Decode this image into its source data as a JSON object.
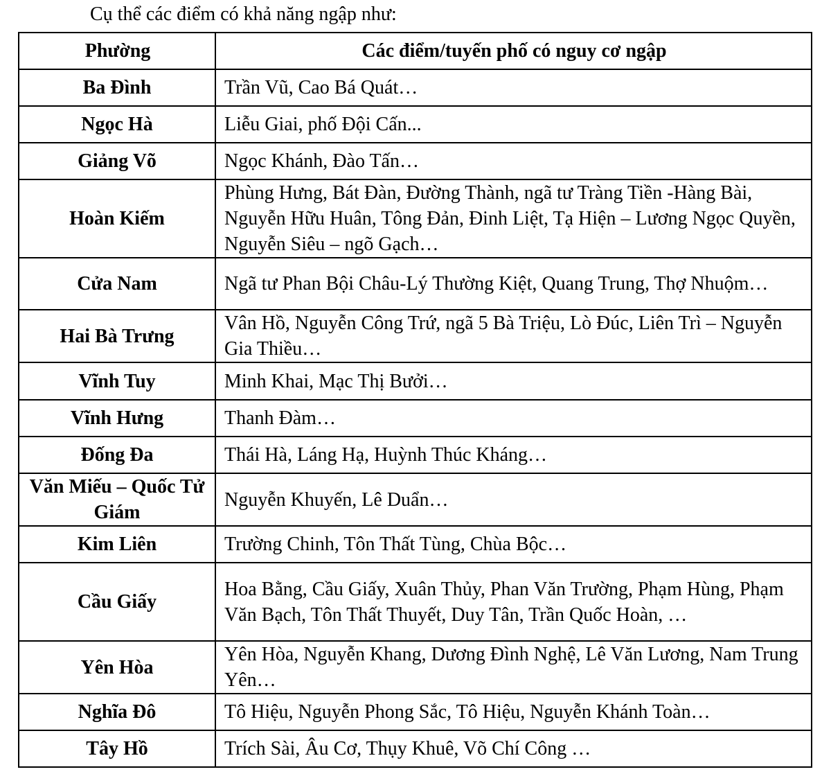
{
  "intro": "Cụ thể các điểm có khả năng ngập như:",
  "table": {
    "headers": [
      "Phường",
      "Các điểm/tuyến phố có nguy cơ ngập"
    ],
    "rows": [
      {
        "ward": "Ba Đình",
        "streets": "Trần Vũ, Cao Bá Quát…"
      },
      {
        "ward": "Ngọc Hà",
        "streets": "Liễu Giai, phố Đội Cấn..."
      },
      {
        "ward": "Giảng Võ",
        "streets": "Ngọc Khánh, Đào Tấn…"
      },
      {
        "ward": "Hoàn Kiếm",
        "streets": "Phùng Hưng, Bát Đàn, Đường Thành, ngã tư Tràng Tiền -Hàng Bài, Nguyễn Hữu Huân, Tông Đản, Đinh Liệt, Tạ Hiện – Lương Ngọc Quyền, Nguyễn Siêu – ngõ Gạch…"
      },
      {
        "ward": "Cửa Nam",
        "streets": "Ngã tư Phan Bội Châu-Lý Thường Kiệt, Quang Trung, Thợ Nhuộm…"
      },
      {
        "ward": "Hai Bà Trưng",
        "streets": "Vân Hồ, Nguyễn Công Trứ, ngã 5 Bà Triệu, Lò Đúc, Liên Trì – Nguyễn Gia Thiều…"
      },
      {
        "ward": "Vĩnh Tuy",
        "streets": "Minh Khai, Mạc Thị Bưởi…"
      },
      {
        "ward": "Vĩnh Hưng",
        "streets": "Thanh Đàm…"
      },
      {
        "ward": "Đống Đa",
        "streets": "Thái Hà, Láng Hạ, Huỳnh Thúc Kháng…"
      },
      {
        "ward": "Văn Miếu – Quốc Tử Giám",
        "streets": "Nguyễn Khuyến, Lê Duẩn…"
      },
      {
        "ward": "Kim Liên",
        "streets": "Trường Chinh, Tôn Thất Tùng, Chùa Bộc…"
      },
      {
        "ward": "Cầu Giấy",
        "streets": "Hoa Bằng, Cầu Giấy, Xuân Thủy, Phan Văn Trường, Phạm Hùng, Phạm Văn Bạch, Tôn Thất Thuyết, Duy Tân, Trần Quốc Hoàn, …"
      },
      {
        "ward": "Yên Hòa",
        "streets": "Yên Hòa, Nguyễn Khang, Dương Đình Nghệ, Lê Văn Lương, Nam Trung Yên…"
      },
      {
        "ward": "Nghĩa Đô",
        "streets": "Tô Hiệu, Nguyễn Phong Sắc, Tô Hiệu, Nguyễn Khánh Toàn…"
      },
      {
        "ward": "Tây Hồ",
        "streets": "Trích Sài, Âu Cơ, Thụy Khuê, Võ Chí Công …"
      }
    ]
  }
}
